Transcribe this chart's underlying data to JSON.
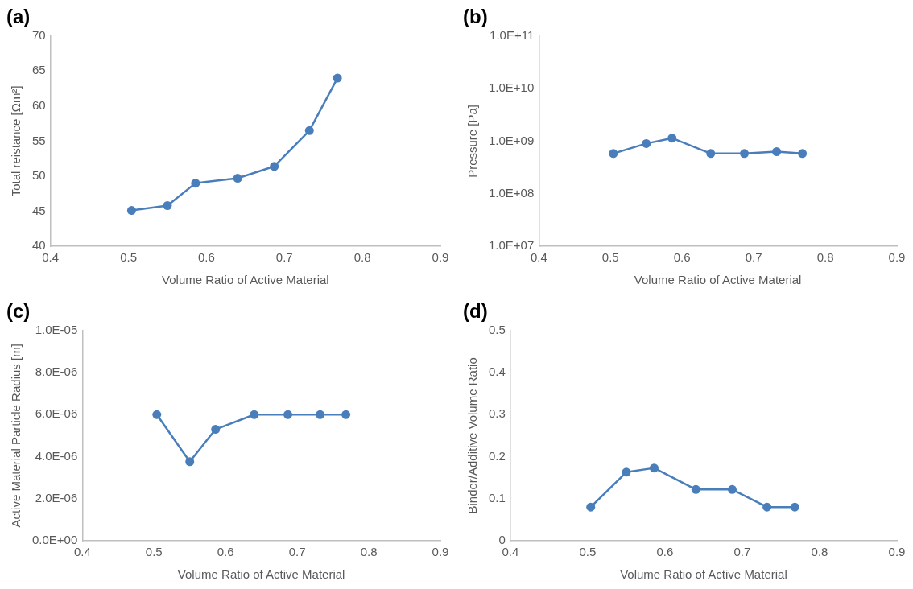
{
  "chart_data": [
    {
      "type": "line",
      "title": "(a)",
      "xlabel": "Volume Ratio of Active Material",
      "ylabel": "Total reistance [Ωm²]",
      "x": [
        0.504,
        0.55,
        0.586,
        0.64,
        0.687,
        0.732,
        0.768
      ],
      "series": [
        {
          "color": "#4a7ebb",
          "values": [
            45.1,
            45.8,
            49.0,
            49.7,
            51.4,
            56.5,
            64.0
          ]
        }
      ],
      "xlim": [
        0.4,
        0.9
      ],
      "xticks": [
        0.4,
        0.5,
        0.6,
        0.7,
        0.8,
        0.9
      ],
      "ylim": [
        40,
        70
      ],
      "yticks": [
        40,
        45,
        50,
        55,
        60,
        65,
        70
      ],
      "grid": false,
      "legend": false,
      "marker": "circle",
      "line_style": "solid"
    },
    {
      "type": "line",
      "title": "(b)",
      "xlabel": "Volume Ratio of Active Material",
      "ylabel": "Pressure [Pa]",
      "x": [
        0.504,
        0.55,
        0.586,
        0.64,
        0.687,
        0.732,
        0.768
      ],
      "series": [
        {
          "color": "#4a7ebb",
          "values": [
            580000000.0,
            900000000.0,
            1140000000.0,
            580000000.0,
            580000000.0,
            630000000.0,
            580000000.0
          ]
        }
      ],
      "xlim": [
        0.4,
        0.9
      ],
      "xticks": [
        0.4,
        0.5,
        0.6,
        0.7,
        0.8,
        0.9
      ],
      "ylim": [
        10000000.0,
        100000000000.0
      ],
      "yticks": [
        {
          "value": 10000000.0,
          "label": "1.0E+07"
        },
        {
          "value": 100000000.0,
          "label": "1.0E+08"
        },
        {
          "value": 1000000000.0,
          "label": "1.0E+09"
        },
        {
          "value": 10000000000.0,
          "label": "1.0E+10"
        },
        {
          "value": 100000000000.0,
          "label": "1.0E+11"
        }
      ],
      "log": "y",
      "grid": false,
      "legend": false,
      "marker": "circle",
      "line_style": "solid"
    },
    {
      "type": "line",
      "title": "(c)",
      "xlabel": "Volume Ratio of Active Material",
      "ylabel": "Active Material Particle Radius [m]",
      "x": [
        0.504,
        0.55,
        0.586,
        0.64,
        0.687,
        0.732,
        0.768
      ],
      "series": [
        {
          "color": "#4a7ebb",
          "values": [
            6e-06,
            3.76e-06,
            5.3e-06,
            6e-06,
            6e-06,
            6e-06,
            6e-06
          ]
        }
      ],
      "xlim": [
        0.4,
        0.9
      ],
      "xticks": [
        0.4,
        0.5,
        0.6,
        0.7,
        0.8,
        0.9
      ],
      "ylim": [
        0,
        1e-05
      ],
      "yticks": [
        {
          "value": 0,
          "label": "0.0E+00"
        },
        {
          "value": 2e-06,
          "label": "2.0E-06"
        },
        {
          "value": 4e-06,
          "label": "4.0E-06"
        },
        {
          "value": 6e-06,
          "label": "6.0E-06"
        },
        {
          "value": 8e-06,
          "label": "8.0E-06"
        },
        {
          "value": 1e-05,
          "label": "1.0E-05"
        }
      ],
      "grid": false,
      "legend": false,
      "marker": "circle",
      "line_style": "solid"
    },
    {
      "type": "line",
      "title": "(d)",
      "xlabel": "Volume Ratio of Active Material",
      "ylabel": "Binder/Additive Volume Ratio",
      "x": [
        0.504,
        0.55,
        0.586,
        0.64,
        0.687,
        0.732,
        0.768
      ],
      "series": [
        {
          "color": "#4a7ebb",
          "values": [
            0.08,
            0.163,
            0.173,
            0.122,
            0.122,
            0.08,
            0.08
          ]
        }
      ],
      "xlim": [
        0.4,
        0.9
      ],
      "xticks": [
        0.4,
        0.5,
        0.6,
        0.7,
        0.8,
        0.9
      ],
      "ylim": [
        0,
        0.5
      ],
      "yticks": [
        0,
        0.1,
        0.2,
        0.3,
        0.4,
        0.5
      ],
      "grid": false,
      "legend": false,
      "marker": "circle",
      "line_style": "solid"
    }
  ]
}
